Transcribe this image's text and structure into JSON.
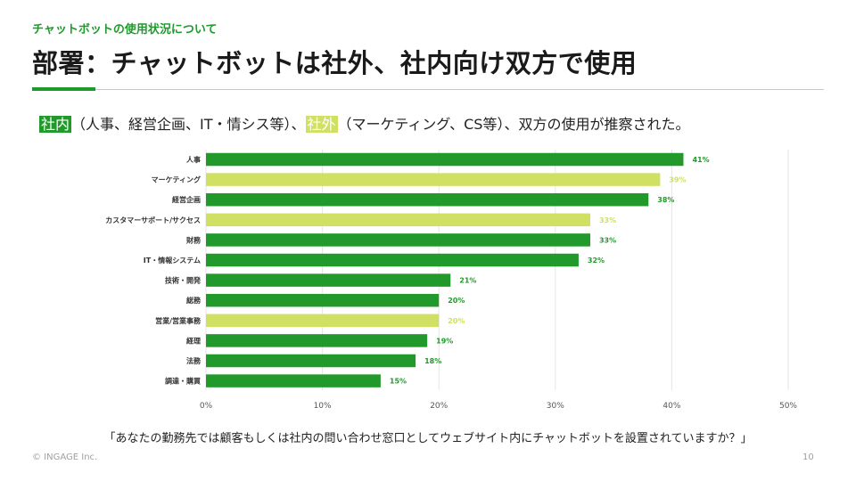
{
  "header": {
    "subtitle": "チャットボットの使用状況について",
    "title": "部署：チャットボットは社外、社内向け双方で使用"
  },
  "lead": {
    "tag_internal": "社内",
    "text_internal": "（人事、経営企画、IT・情シス等）、",
    "tag_external": "社外",
    "text_external": "（マーケティング、CS等）、双方の使用が推察された。"
  },
  "colors": {
    "accent": "#1e9a2c",
    "internal": "#229a2b",
    "external": "#cfe063",
    "internal_label": "#229a2b",
    "external_label": "#cfe063"
  },
  "chart_data": {
    "type": "bar",
    "orientation": "horizontal",
    "categories": [
      "人事",
      "マーケティング",
      "経営企画",
      "カスタマーサポート/サクセス",
      "財務",
      "IT・情報システム",
      "技術・開発",
      "総務",
      "営業/営業事務",
      "経理",
      "法務",
      "調達・購買"
    ],
    "values": [
      41,
      39,
      38,
      33,
      33,
      32,
      21,
      20,
      20,
      19,
      18,
      15
    ],
    "group": [
      "internal",
      "external",
      "internal",
      "external",
      "internal",
      "internal",
      "internal",
      "internal",
      "external",
      "internal",
      "internal",
      "internal"
    ],
    "value_labels": [
      "41%",
      "39%",
      "38%",
      "33%",
      "33%",
      "32%",
      "21%",
      "20%",
      "20%",
      "19%",
      "18%",
      "15%"
    ],
    "xlim": [
      0,
      50
    ],
    "xticks": [
      0,
      10,
      20,
      30,
      40,
      50
    ],
    "xtick_labels": [
      "0%",
      "10%",
      "20%",
      "30%",
      "40%",
      "50%"
    ],
    "grid": true
  },
  "caption": "「あなたの勤務先では顧客もしくは社内の問い合わせ窓口としてウェブサイト内にチャットボットを設置されていますか？」",
  "footer": {
    "copyright": "© INGAGE Inc.",
    "page": "10"
  }
}
